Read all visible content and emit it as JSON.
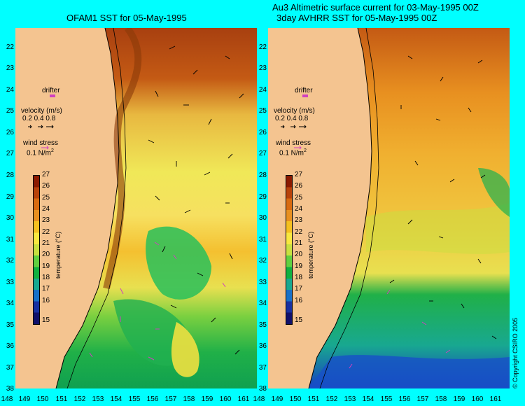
{
  "titles": {
    "left": "OFAM1 SST for 05-May-1995",
    "right_line1": "Au3 Altimetric surface current for 03-May-1995 00Z",
    "right_line2": "3day AVHRR SST for 05-May-1995 00Z"
  },
  "latitude_labels": [
    "22",
    "23",
    "24",
    "25",
    "26",
    "27",
    "28",
    "29",
    "30",
    "31",
    "32",
    "33",
    "34",
    "35",
    "36",
    "37",
    "38"
  ],
  "longitude_labels": [
    "148",
    "149",
    "150",
    "151",
    "152",
    "153",
    "154",
    "155",
    "156",
    "157",
    "158",
    "159",
    "160",
    "161"
  ],
  "legend": {
    "drifter": "drifter",
    "velocity_title": "velocity (m/s)",
    "velocity_values": "0.2 0.4 0.8",
    "wind_title": "wind stress",
    "wind_value": "0.1 N/m",
    "wind_exp": "2"
  },
  "colorbar": {
    "title": "temperature (°C)",
    "ticks": [
      "27",
      "26",
      "25",
      "24",
      "23",
      "22",
      "21",
      "20",
      "19",
      "18",
      "17",
      "16",
      "15"
    ],
    "colors": [
      "#8b1a00",
      "#b8420a",
      "#d86a10",
      "#e89020",
      "#f4c020",
      "#f8e840",
      "#c8e040",
      "#60d040",
      "#10b040",
      "#18a890",
      "#1870c8",
      "#1830a0",
      "#10106a"
    ]
  },
  "copyright": "© Copyright CSIRO 2005"
}
